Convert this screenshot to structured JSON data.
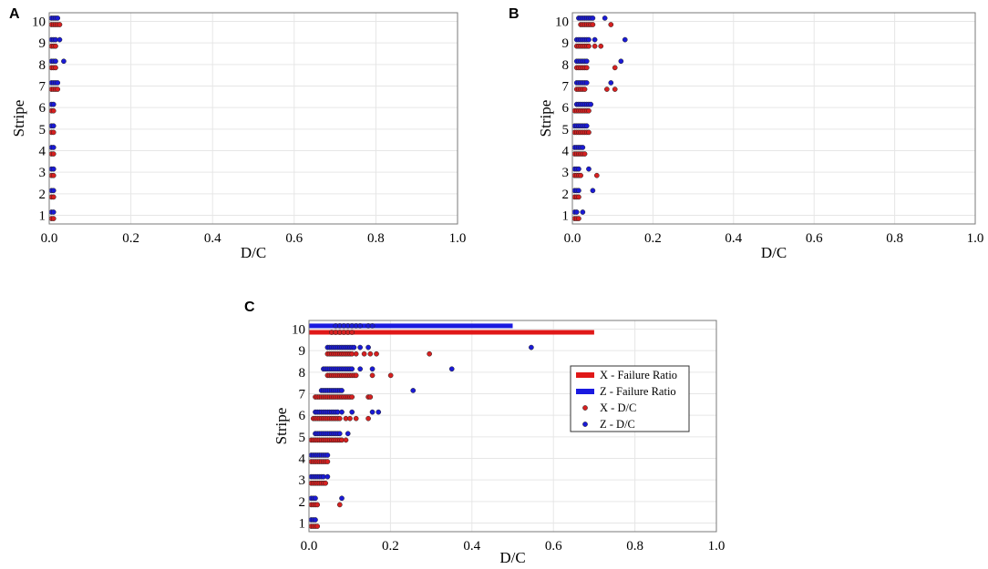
{
  "chart_data": [
    {
      "panel": "A",
      "type": "scatter",
      "xlabel": "D/C",
      "ylabel": "Stripe",
      "xlim": [
        0,
        1
      ],
      "ylim": [
        0.6,
        10.4
      ],
      "xticks": [
        "0.0",
        "0.2",
        "0.4",
        "0.6",
        "0.8",
        "1.0"
      ],
      "yticks": [
        "1",
        "2",
        "3",
        "4",
        "5",
        "6",
        "7",
        "8",
        "9",
        "10"
      ],
      "grid": true,
      "series": [
        {
          "name": "X - D/C",
          "color": "#d62020",
          "points": [
            [
              1,
              [
                0,
                0.005
              ]
            ],
            [
              2,
              [
                0,
                0.005
              ]
            ],
            [
              3,
              [
                0,
                0.005
              ]
            ],
            [
              4,
              [
                0,
                0.005
              ]
            ],
            [
              5,
              [
                0,
                0.005
              ]
            ],
            [
              6,
              [
                0,
                0.005
              ]
            ],
            [
              7,
              [
                0,
                0.005,
                0.01,
                0.015
              ]
            ],
            [
              8,
              [
                0,
                0.005,
                0.01
              ]
            ],
            [
              9,
              [
                0,
                0.005,
                0.01
              ]
            ],
            [
              10,
              [
                0,
                0.005,
                0.01,
                0.015,
                0.02
              ]
            ]
          ]
        },
        {
          "name": "Z - D/C",
          "color": "#1a1ad6",
          "points": [
            [
              1,
              [
                0,
                0.005
              ]
            ],
            [
              2,
              [
                0,
                0.005
              ]
            ],
            [
              3,
              [
                0,
                0.005
              ]
            ],
            [
              4,
              [
                0,
                0.005
              ]
            ],
            [
              5,
              [
                0,
                0.005
              ]
            ],
            [
              6,
              [
                0,
                0.005
              ]
            ],
            [
              7,
              [
                0,
                0.005,
                0.01,
                0.015
              ]
            ],
            [
              8,
              [
                0,
                0.005,
                0.01,
                0.03
              ]
            ],
            [
              9,
              [
                0,
                0.005,
                0.01,
                0.02
              ]
            ],
            [
              10,
              [
                0,
                0.005,
                0.01,
                0.015
              ]
            ]
          ]
        }
      ]
    },
    {
      "panel": "B",
      "type": "scatter",
      "xlabel": "D/C",
      "ylabel": "Stripe",
      "xlim": [
        0,
        1
      ],
      "ylim": [
        0.6,
        10.4
      ],
      "xticks": [
        "0.0",
        "0.2",
        "0.4",
        "0.6",
        "0.8",
        "1.0"
      ],
      "yticks": [
        "1",
        "2",
        "3",
        "4",
        "5",
        "6",
        "7",
        "8",
        "9",
        "10"
      ],
      "grid": true,
      "series": [
        {
          "name": "X - D/C",
          "color": "#d62020",
          "points": [
            [
              1,
              [
                0,
                0.005,
                0.01
              ]
            ],
            [
              2,
              [
                0,
                0.005,
                0.01
              ]
            ],
            [
              3,
              [
                0,
                0.005,
                0.01,
                0.015,
                0.055
              ]
            ],
            [
              4,
              [
                0,
                0.005,
                0.01,
                0.015,
                0.02,
                0.025
              ]
            ],
            [
              5,
              [
                0,
                0.005,
                0.01,
                0.015,
                0.02,
                0.025,
                0.03,
                0.035
              ]
            ],
            [
              6,
              [
                0,
                0.005,
                0.01,
                0.015,
                0.02,
                0.025,
                0.03,
                0.035
              ]
            ],
            [
              7,
              [
                0.005,
                0.01,
                0.015,
                0.02,
                0.025,
                0.08,
                0.1
              ]
            ],
            [
              8,
              [
                0.005,
                0.01,
                0.015,
                0.02,
                0.025,
                0.03,
                0.1
              ]
            ],
            [
              9,
              [
                0.005,
                0.01,
                0.015,
                0.02,
                0.025,
                0.03,
                0.035,
                0.05,
                0.065
              ]
            ],
            [
              10,
              [
                0.015,
                0.02,
                0.025,
                0.03,
                0.035,
                0.04,
                0.045,
                0.09
              ]
            ]
          ]
        },
        {
          "name": "Z - D/C",
          "color": "#1a1ad6",
          "points": [
            [
              1,
              [
                0,
                0.005,
                0.02
              ]
            ],
            [
              2,
              [
                0,
                0.005,
                0.01,
                0.045
              ]
            ],
            [
              3,
              [
                0,
                0.005,
                0.01,
                0.035
              ]
            ],
            [
              4,
              [
                0,
                0.005,
                0.01,
                0.015,
                0.02
              ]
            ],
            [
              5,
              [
                0,
                0.005,
                0.01,
                0.015,
                0.02,
                0.025,
                0.03
              ]
            ],
            [
              6,
              [
                0.005,
                0.01,
                0.015,
                0.02,
                0.025,
                0.03,
                0.035,
                0.04
              ]
            ],
            [
              7,
              [
                0.005,
                0.01,
                0.015,
                0.02,
                0.025,
                0.03,
                0.09
              ]
            ],
            [
              8,
              [
                0.005,
                0.01,
                0.015,
                0.02,
                0.025,
                0.03,
                0.115
              ]
            ],
            [
              9,
              [
                0.005,
                0.01,
                0.015,
                0.02,
                0.025,
                0.03,
                0.035,
                0.05,
                0.125
              ]
            ],
            [
              10,
              [
                0.01,
                0.015,
                0.02,
                0.025,
                0.03,
                0.035,
                0.04,
                0.045,
                0.075
              ]
            ]
          ]
        }
      ]
    },
    {
      "panel": "C",
      "type": "scatter",
      "xlabel": "D/C",
      "ylabel": "Stripe",
      "xlim": [
        0,
        1
      ],
      "ylim": [
        0.6,
        10.4
      ],
      "xticks": [
        "0.0",
        "0.2",
        "0.4",
        "0.6",
        "0.8",
        "1.0"
      ],
      "yticks": [
        "1",
        "2",
        "3",
        "4",
        "5",
        "6",
        "7",
        "8",
        "9",
        "10"
      ],
      "grid": true,
      "legend": {
        "position": "right",
        "entries": [
          "X - Failure Ratio",
          "Z - Failure Ratio",
          "X - D/C",
          "Z - D/C"
        ]
      },
      "failure_ratio": [
        {
          "name": "X - Failure Ratio",
          "color": "#e01818",
          "stripe": 10,
          "value": 0.7
        },
        {
          "name": "Z - Failure Ratio",
          "color": "#1a1ae0",
          "stripe": 10,
          "value": 0.5
        }
      ],
      "series": [
        {
          "name": "X - D/C",
          "color": "#d62020",
          "points": [
            [
              1,
              [
                0,
                0.005,
                0.01,
                0.015
              ]
            ],
            [
              2,
              [
                0,
                0.005,
                0.01,
                0.015,
                0.07
              ]
            ],
            [
              3,
              [
                0,
                0.005,
                0.01,
                0.015,
                0.02,
                0.025,
                0.03,
                0.035
              ]
            ],
            [
              4,
              [
                0,
                0.005,
                0.01,
                0.015,
                0.02,
                0.025,
                0.03,
                0.035,
                0.04
              ]
            ],
            [
              5,
              [
                0,
                0.005,
                0.01,
                0.015,
                0.02,
                0.025,
                0.03,
                0.035,
                0.04,
                0.045,
                0.05,
                0.055,
                0.06,
                0.065,
                0.07,
                0.075,
                0.085
              ]
            ],
            [
              6,
              [
                0.005,
                0.01,
                0.015,
                0.02,
                0.025,
                0.03,
                0.035,
                0.04,
                0.045,
                0.05,
                0.055,
                0.06,
                0.065,
                0.07,
                0.085,
                0.095,
                0.11,
                0.14
              ]
            ],
            [
              7,
              [
                0.01,
                0.015,
                0.02,
                0.025,
                0.03,
                0.035,
                0.04,
                0.045,
                0.05,
                0.055,
                0.06,
                0.065,
                0.07,
                0.075,
                0.08,
                0.085,
                0.09,
                0.095,
                0.1,
                0.14,
                0.145
              ]
            ],
            [
              8,
              [
                0.04,
                0.045,
                0.05,
                0.055,
                0.06,
                0.065,
                0.07,
                0.075,
                0.08,
                0.085,
                0.09,
                0.095,
                0.1,
                0.105,
                0.11,
                0.15,
                0.195
              ]
            ],
            [
              9,
              [
                0.04,
                0.045,
                0.05,
                0.055,
                0.06,
                0.065,
                0.07,
                0.075,
                0.08,
                0.085,
                0.09,
                0.095,
                0.1,
                0.11,
                0.13,
                0.145,
                0.16,
                0.29
              ]
            ],
            [
              10,
              [
                0.05,
                0.06,
                0.07,
                0.08,
                0.09,
                0.1
              ]
            ]
          ]
        },
        {
          "name": "Z - D/C",
          "color": "#1a1ad6",
          "points": [
            [
              1,
              [
                0,
                0.005,
                0.01
              ]
            ],
            [
              2,
              [
                0,
                0.005,
                0.01,
                0.075
              ]
            ],
            [
              3,
              [
                0,
                0.005,
                0.01,
                0.015,
                0.02,
                0.025,
                0.03,
                0.04
              ]
            ],
            [
              4,
              [
                0,
                0.005,
                0.01,
                0.015,
                0.02,
                0.025,
                0.03,
                0.035,
                0.04
              ]
            ],
            [
              5,
              [
                0.01,
                0.015,
                0.02,
                0.025,
                0.03,
                0.035,
                0.04,
                0.045,
                0.05,
                0.055,
                0.06,
                0.065,
                0.07,
                0.09
              ]
            ],
            [
              6,
              [
                0.01,
                0.015,
                0.02,
                0.025,
                0.03,
                0.035,
                0.04,
                0.045,
                0.05,
                0.055,
                0.06,
                0.065,
                0.075,
                0.1,
                0.15,
                0.165
              ]
            ],
            [
              7,
              [
                0.025,
                0.03,
                0.035,
                0.04,
                0.045,
                0.05,
                0.055,
                0.06,
                0.065,
                0.07,
                0.075,
                0.25
              ]
            ],
            [
              8,
              [
                0.03,
                0.035,
                0.04,
                0.045,
                0.05,
                0.055,
                0.06,
                0.065,
                0.07,
                0.075,
                0.08,
                0.085,
                0.09,
                0.095,
                0.1,
                0.12,
                0.15,
                0.345
              ]
            ],
            [
              9,
              [
                0.04,
                0.045,
                0.05,
                0.055,
                0.06,
                0.065,
                0.07,
                0.075,
                0.08,
                0.085,
                0.09,
                0.095,
                0.1,
                0.105,
                0.12,
                0.14,
                0.54
              ]
            ],
            [
              10,
              [
                0.06,
                0.07,
                0.08,
                0.09,
                0.1,
                0.11,
                0.12,
                0.14,
                0.15
              ]
            ]
          ]
        }
      ]
    }
  ]
}
